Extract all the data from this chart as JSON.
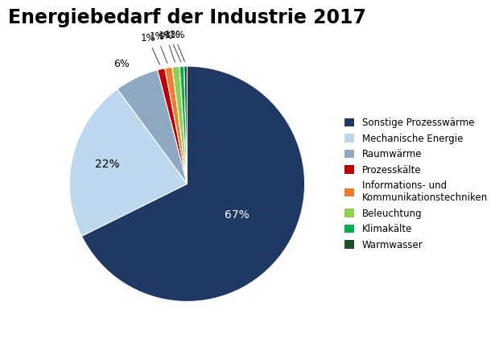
{
  "title": "Energiebedarf der Industrie 2017",
  "slices": [
    {
      "label": "Sonstige Prozesswärme",
      "value": 67,
      "color": "#1F3864",
      "pct_label": "67%",
      "text_color": "white"
    },
    {
      "label": "Mechanische Energie",
      "value": 22,
      "color": "#BDD7EE",
      "pct_label": "22%",
      "text_color": "black"
    },
    {
      "label": "Raumwärme",
      "value": 6,
      "color": "#8EA9C1",
      "pct_label": "6%",
      "text_color": "black"
    },
    {
      "label": "Prozesskälte",
      "value": 1,
      "color": "#C00000",
      "pct_label": "1%",
      "text_color": "black"
    },
    {
      "label": "Informations- und\nKommunikationstechniken",
      "value": 1,
      "color": "#ED7D31",
      "pct_label": "1%",
      "text_color": "black"
    },
    {
      "label": "Beleuchtung",
      "value": 1,
      "color": "#92D050",
      "pct_label": "1%",
      "text_color": "black"
    },
    {
      "label": "Klimakälte",
      "value": 0.6,
      "color": "#00B050",
      "pct_label": "<1%",
      "text_color": "black"
    },
    {
      "label": "Warmwasser",
      "value": 0.4,
      "color": "#1F4E2A",
      "pct_label": "<1%",
      "text_color": "black"
    }
  ],
  "title_fontsize": 17,
  "label_fontsize": 9,
  "legend_fontsize": 8.5,
  "background_color": "#FFFFFF",
  "startangle": 90
}
